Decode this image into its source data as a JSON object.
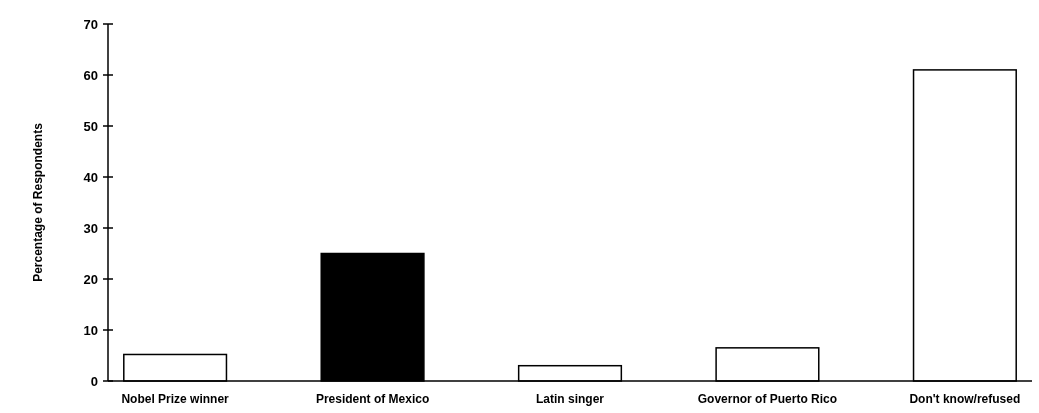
{
  "chart_data": {
    "type": "bar",
    "ylabel": "Percentage of Respondents",
    "categories": [
      "Nobel Prize winner",
      "President of Mexico",
      "Latin singer",
      "Governor of Puerto Rico",
      "Don't know/refused"
    ],
    "values": [
      5.2,
      25,
      3,
      6.5,
      61
    ],
    "colors": [
      "#ffffff",
      "#000000",
      "#ffffff",
      "#ffffff",
      "#ffffff"
    ],
    "ylim": [
      0,
      70
    ],
    "yticks": [
      0,
      10,
      20,
      30,
      40,
      50,
      60,
      70
    ],
    "grid": false
  }
}
